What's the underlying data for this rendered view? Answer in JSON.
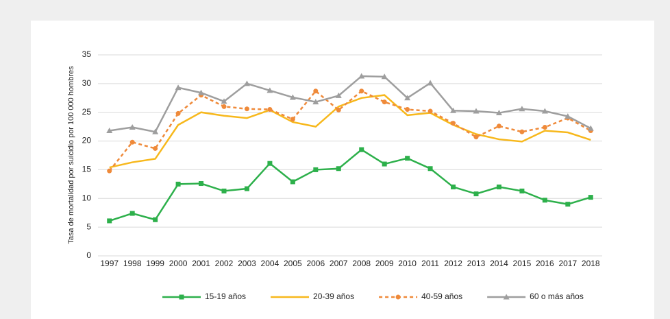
{
  "chart_data": {
    "type": "line",
    "y_label": "Tasa de mortalidad por suicidio por 100 000 hombres",
    "categories": [
      "1997",
      "1998",
      "1999",
      "2000",
      "2001",
      "2002",
      "2003",
      "2004",
      "2005",
      "2006",
      "2007",
      "2008",
      "2009",
      "2010",
      "2011",
      "2012",
      "2013",
      "2014",
      "2015",
      "2016",
      "2017",
      "2018"
    ],
    "series": [
      {
        "name": "15-19 años",
        "color": "#2db04b",
        "marker": "square",
        "dash": false,
        "values": [
          6.1,
          7.4,
          6.3,
          12.5,
          12.6,
          11.3,
          11.7,
          16.1,
          12.9,
          15.0,
          15.2,
          18.5,
          16.0,
          17.0,
          15.2,
          12.0,
          10.8,
          12.0,
          11.3,
          9.7,
          9.0,
          10.2
        ]
      },
      {
        "name": "20-39 años",
        "color": "#f7b81c",
        "marker": "none",
        "dash": false,
        "values": [
          15.4,
          16.3,
          16.9,
          22.8,
          25.0,
          24.4,
          24.0,
          25.4,
          23.3,
          22.5,
          26.0,
          27.5,
          28.0,
          24.5,
          24.9,
          22.8,
          21.2,
          20.3,
          19.9,
          21.8,
          21.5,
          20.2
        ]
      },
      {
        "name": "40-59 años",
        "color": "#ef8a3a",
        "marker": "circle",
        "dash": true,
        "values": [
          14.8,
          19.8,
          18.7,
          24.8,
          28.0,
          26.0,
          25.6,
          25.5,
          23.8,
          28.7,
          25.4,
          28.7,
          26.8,
          25.5,
          25.2,
          23.1,
          20.7,
          22.6,
          21.6,
          22.4,
          24.0,
          21.8
        ]
      },
      {
        "name": "60 o más años",
        "color": "#9e9e9e",
        "marker": "triangle",
        "dash": false,
        "values": [
          21.8,
          22.4,
          21.6,
          29.3,
          28.4,
          26.9,
          30.0,
          28.8,
          27.6,
          26.8,
          27.9,
          31.3,
          31.2,
          27.5,
          30.1,
          25.3,
          25.2,
          24.9,
          25.6,
          25.2,
          24.3,
          22.2
        ]
      }
    ],
    "ylim": [
      0,
      35
    ],
    "yticks": [
      0,
      5,
      10,
      15,
      20,
      25,
      30,
      35
    ],
    "grid": true,
    "legend": "bottom"
  }
}
